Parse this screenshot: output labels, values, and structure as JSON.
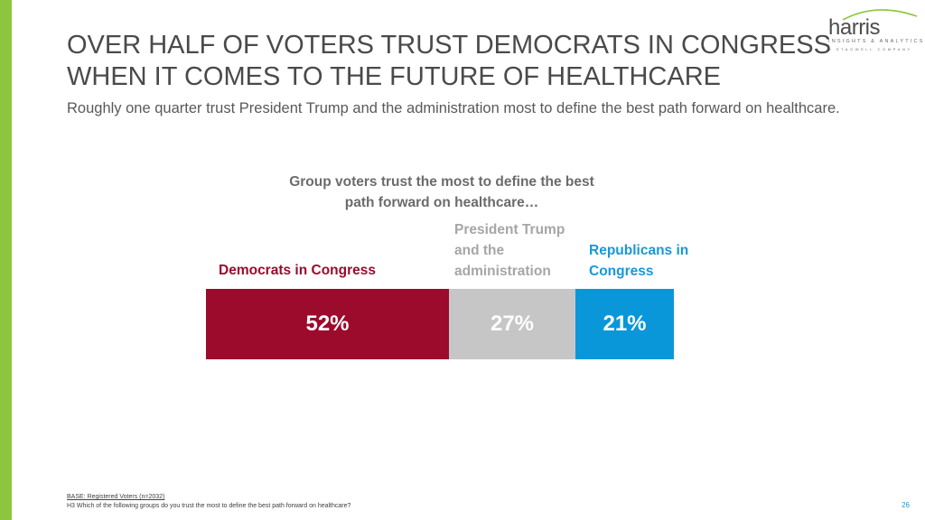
{
  "logo": {
    "name": "harris",
    "tagline": "INSIGHTS & ANALYTICS",
    "company": "A STAGWELL COMPANY",
    "arc_color": "#8cc63f"
  },
  "header": {
    "title_line1": "OVER HALF OF VOTERS TRUST DEMOCRATS IN CONGRESS",
    "title_line2": "WHEN IT COMES TO THE FUTURE OF HEALTHCARE",
    "subtitle": "Roughly one quarter trust President Trump and the administration most to define the best path forward on healthcare."
  },
  "chart_data": {
    "type": "bar",
    "orientation": "stacked-horizontal",
    "title_line1": "Group voters trust the most to define the best",
    "title_line2": "path forward on healthcare…",
    "unit": "%",
    "series": [
      {
        "name": "Democrats in Congress",
        "value": 52,
        "label": "52%",
        "color": "#9c0a2c"
      },
      {
        "name": "President Trump and the administration",
        "value": 27,
        "label": "27%",
        "color": "#c6c6c6"
      },
      {
        "name": "Republicans in Congress",
        "value": 21,
        "label": "21%",
        "color": "#0a97d9"
      }
    ],
    "label_colors": [
      "#9c0a2c",
      "#a6a6a6",
      "#1a97d8"
    ]
  },
  "footer": {
    "base": "BASE: Registered Voters (n=2032)",
    "question": "H3 Which of the following groups do you trust the most to define the best path forward on healthcare?",
    "page_number": "26"
  },
  "colors": {
    "accent_green": "#8cc63f",
    "title_gray": "#4a4a4a"
  }
}
